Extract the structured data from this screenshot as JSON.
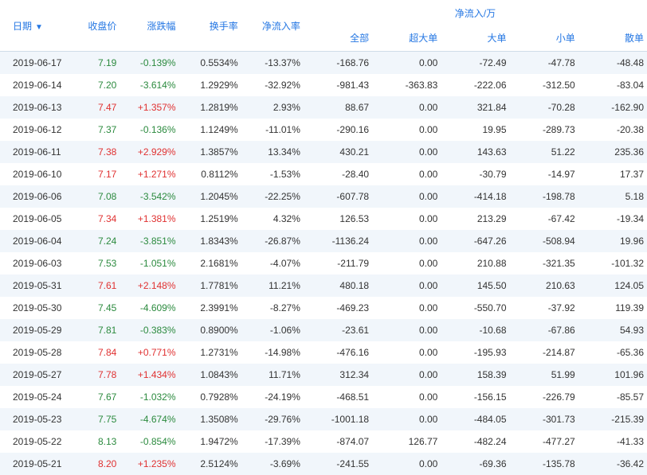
{
  "headers": {
    "date": "日期",
    "close": "收盘价",
    "change": "涨跌幅",
    "turnover": "换手率",
    "inflow_rate": "净流入率",
    "net_inflow_group": "净流入/万",
    "all": "全部",
    "extra_large": "超大单",
    "large": "大单",
    "small": "小单",
    "retail": "散单"
  },
  "colors": {
    "header_text": "#2577e3",
    "row_odd_bg": "#f1f6fb",
    "row_even_bg": "#ffffff",
    "up": "#e03131",
    "down": "#2b8a3e"
  },
  "rows": [
    {
      "date": "2019-06-17",
      "close": "7.19",
      "close_dir": "down",
      "change": "-0.139%",
      "change_dir": "down",
      "turnover": "0.5534%",
      "inflow_rate": "-13.37%",
      "all": "-168.76",
      "xl": "0.00",
      "l": "-72.49",
      "s": "-47.78",
      "r": "-48.48"
    },
    {
      "date": "2019-06-14",
      "close": "7.20",
      "close_dir": "down",
      "change": "-3.614%",
      "change_dir": "down",
      "turnover": "1.2929%",
      "inflow_rate": "-32.92%",
      "all": "-981.43",
      "xl": "-363.83",
      "l": "-222.06",
      "s": "-312.50",
      "r": "-83.04"
    },
    {
      "date": "2019-06-13",
      "close": "7.47",
      "close_dir": "up",
      "change": "+1.357%",
      "change_dir": "up",
      "turnover": "1.2819%",
      "inflow_rate": "2.93%",
      "all": "88.67",
      "xl": "0.00",
      "l": "321.84",
      "s": "-70.28",
      "r": "-162.90"
    },
    {
      "date": "2019-06-12",
      "close": "7.37",
      "close_dir": "down",
      "change": "-0.136%",
      "change_dir": "down",
      "turnover": "1.1249%",
      "inflow_rate": "-11.01%",
      "all": "-290.16",
      "xl": "0.00",
      "l": "19.95",
      "s": "-289.73",
      "r": "-20.38"
    },
    {
      "date": "2019-06-11",
      "close": "7.38",
      "close_dir": "up",
      "change": "+2.929%",
      "change_dir": "up",
      "turnover": "1.3857%",
      "inflow_rate": "13.34%",
      "all": "430.21",
      "xl": "0.00",
      "l": "143.63",
      "s": "51.22",
      "r": "235.36"
    },
    {
      "date": "2019-06-10",
      "close": "7.17",
      "close_dir": "up",
      "change": "+1.271%",
      "change_dir": "up",
      "turnover": "0.8112%",
      "inflow_rate": "-1.53%",
      "all": "-28.40",
      "xl": "0.00",
      "l": "-30.79",
      "s": "-14.97",
      "r": "17.37"
    },
    {
      "date": "2019-06-06",
      "close": "7.08",
      "close_dir": "down",
      "change": "-3.542%",
      "change_dir": "down",
      "turnover": "1.2045%",
      "inflow_rate": "-22.25%",
      "all": "-607.78",
      "xl": "0.00",
      "l": "-414.18",
      "s": "-198.78",
      "r": "5.18"
    },
    {
      "date": "2019-06-05",
      "close": "7.34",
      "close_dir": "up",
      "change": "+1.381%",
      "change_dir": "up",
      "turnover": "1.2519%",
      "inflow_rate": "4.32%",
      "all": "126.53",
      "xl": "0.00",
      "l": "213.29",
      "s": "-67.42",
      "r": "-19.34"
    },
    {
      "date": "2019-06-04",
      "close": "7.24",
      "close_dir": "down",
      "change": "-3.851%",
      "change_dir": "down",
      "turnover": "1.8343%",
      "inflow_rate": "-26.87%",
      "all": "-1136.24",
      "xl": "0.00",
      "l": "-647.26",
      "s": "-508.94",
      "r": "19.96"
    },
    {
      "date": "2019-06-03",
      "close": "7.53",
      "close_dir": "down",
      "change": "-1.051%",
      "change_dir": "down",
      "turnover": "2.1681%",
      "inflow_rate": "-4.07%",
      "all": "-211.79",
      "xl": "0.00",
      "l": "210.88",
      "s": "-321.35",
      "r": "-101.32"
    },
    {
      "date": "2019-05-31",
      "close": "7.61",
      "close_dir": "up",
      "change": "+2.148%",
      "change_dir": "up",
      "turnover": "1.7781%",
      "inflow_rate": "11.21%",
      "all": "480.18",
      "xl": "0.00",
      "l": "145.50",
      "s": "210.63",
      "r": "124.05"
    },
    {
      "date": "2019-05-30",
      "close": "7.45",
      "close_dir": "down",
      "change": "-4.609%",
      "change_dir": "down",
      "turnover": "2.3991%",
      "inflow_rate": "-8.27%",
      "all": "-469.23",
      "xl": "0.00",
      "l": "-550.70",
      "s": "-37.92",
      "r": "119.39"
    },
    {
      "date": "2019-05-29",
      "close": "7.81",
      "close_dir": "down",
      "change": "-0.383%",
      "change_dir": "down",
      "turnover": "0.8900%",
      "inflow_rate": "-1.06%",
      "all": "-23.61",
      "xl": "0.00",
      "l": "-10.68",
      "s": "-67.86",
      "r": "54.93"
    },
    {
      "date": "2019-05-28",
      "close": "7.84",
      "close_dir": "up",
      "change": "+0.771%",
      "change_dir": "up",
      "turnover": "1.2731%",
      "inflow_rate": "-14.98%",
      "all": "-476.16",
      "xl": "0.00",
      "l": "-195.93",
      "s": "-214.87",
      "r": "-65.36"
    },
    {
      "date": "2019-05-27",
      "close": "7.78",
      "close_dir": "up",
      "change": "+1.434%",
      "change_dir": "up",
      "turnover": "1.0843%",
      "inflow_rate": "11.71%",
      "all": "312.34",
      "xl": "0.00",
      "l": "158.39",
      "s": "51.99",
      "r": "101.96"
    },
    {
      "date": "2019-05-24",
      "close": "7.67",
      "close_dir": "down",
      "change": "-1.032%",
      "change_dir": "down",
      "turnover": "0.7928%",
      "inflow_rate": "-24.19%",
      "all": "-468.51",
      "xl": "0.00",
      "l": "-156.15",
      "s": "-226.79",
      "r": "-85.57"
    },
    {
      "date": "2019-05-23",
      "close": "7.75",
      "close_dir": "down",
      "change": "-4.674%",
      "change_dir": "down",
      "turnover": "1.3508%",
      "inflow_rate": "-29.76%",
      "all": "-1001.18",
      "xl": "0.00",
      "l": "-484.05",
      "s": "-301.73",
      "r": "-215.39"
    },
    {
      "date": "2019-05-22",
      "close": "8.13",
      "close_dir": "down",
      "change": "-0.854%",
      "change_dir": "down",
      "turnover": "1.9472%",
      "inflow_rate": "-17.39%",
      "all": "-874.07",
      "xl": "126.77",
      "l": "-482.24",
      "s": "-477.27",
      "r": "-41.33"
    },
    {
      "date": "2019-05-21",
      "close": "8.20",
      "close_dir": "up",
      "change": "+1.235%",
      "change_dir": "up",
      "turnover": "2.5124%",
      "inflow_rate": "-3.69%",
      "all": "-241.55",
      "xl": "0.00",
      "l": "-69.36",
      "s": "-135.78",
      "r": "-36.42"
    }
  ]
}
